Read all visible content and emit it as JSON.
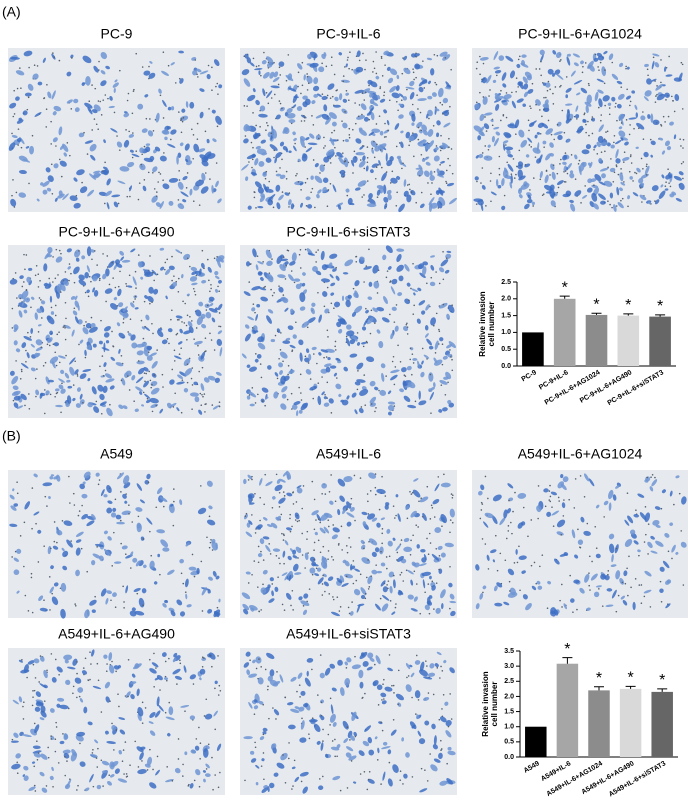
{
  "panels": [
    {
      "label": "(A)",
      "images": [
        "PC-9",
        "PC-9+IL-6",
        "PC-9+IL-6+AG1024",
        "PC-9+IL-6+AG490",
        "PC-9+IL-6+siSTAT3"
      ]
    },
    {
      "label": "(B)",
      "images": [
        "A549",
        "A549+IL-6",
        "A549+IL-6+AG1024",
        "A549+IL-6+AG490",
        "A549+IL-6+siSTAT3"
      ]
    }
  ],
  "chart_data": [
    {
      "type": "bar",
      "ylabel": [
        "Relative invasion",
        "cell number"
      ],
      "categories": [
        "PC-9",
        "PC-9+IL-6",
        "PC-9+IL-6+AG1024",
        "PC-9+IL-6+AG490",
        "PC-9+IL-6+siSTAT3"
      ],
      "values": [
        1.0,
        2.0,
        1.52,
        1.5,
        1.47
      ],
      "errors": [
        0,
        0.08,
        0.05,
        0.05,
        0.05
      ],
      "significance": [
        null,
        "*",
        "*",
        "*",
        "*"
      ],
      "colors": [
        "#000000",
        "#a6a6a6",
        "#8c8c8c",
        "#d9d9d9",
        "#666666"
      ],
      "ylim": [
        0,
        2.5
      ],
      "yticks": [
        {
          "value": 0,
          "label": "0.0"
        },
        0.5,
        {
          "value": 1,
          "label": "1.0"
        },
        1.5,
        {
          "value": 2,
          "label": "2.0"
        },
        2.5
      ]
    },
    {
      "type": "bar",
      "ylabel": [
        "Relative invasion",
        "cell number"
      ],
      "categories": [
        "A549",
        "A549+IL-6",
        "A549+IL-6+AG1024",
        "A549+IL-6+AG490",
        "A549+IL-6+siSTAT3"
      ],
      "values": [
        1.0,
        3.08,
        2.2,
        2.25,
        2.15
      ],
      "errors": [
        0,
        0.2,
        0.12,
        0.08,
        0.1
      ],
      "significance": [
        null,
        "*",
        "*",
        "*",
        "*"
      ],
      "colors": [
        "#000000",
        "#a6a6a6",
        "#8c8c8c",
        "#d9d9d9",
        "#666666"
      ],
      "ylim": [
        0,
        3.5
      ],
      "yticks": [
        {
          "value": 0,
          "label": "0.0"
        },
        0.5,
        {
          "value": 1,
          "label": "1.0"
        },
        1.5,
        {
          "value": 2,
          "label": "2.0"
        },
        2.5,
        {
          "value": 3,
          "label": "3.0"
        },
        3.5
      ]
    }
  ]
}
